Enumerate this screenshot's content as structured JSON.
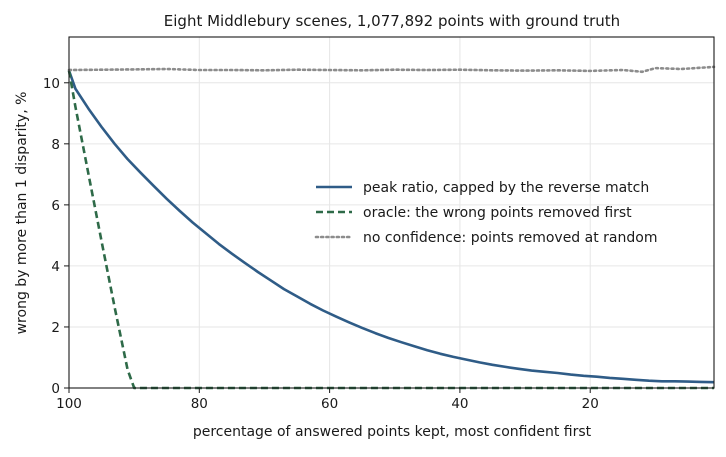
{
  "chart_data": {
    "type": "line",
    "title": "Eight Middlebury scenes, 1,077,892 points with ground truth",
    "xlabel": "percentage of answered points kept, most confident first",
    "ylabel": "wrong by more than 1 disparity, %",
    "xlim": [
      100,
      1
    ],
    "ylim": [
      0,
      11.5
    ],
    "x_axis_inverted": true,
    "xticks": [
      100,
      80,
      60,
      40,
      20
    ],
    "yticks": [
      0,
      2,
      4,
      6,
      8,
      10
    ],
    "grid": true,
    "legend_position": "center-right",
    "series": [
      {
        "name": "peak ratio, capped by the reverse match",
        "color": "#2f5c87",
        "style": "solid",
        "x": [
          100,
          99,
          97,
          95,
          93,
          91,
          89,
          87,
          85,
          83,
          81,
          79,
          77,
          75,
          73,
          71,
          69,
          67,
          65,
          63,
          61,
          59,
          57,
          55,
          53,
          51,
          49,
          47,
          45,
          43,
          41,
          39,
          37,
          35,
          33,
          31,
          29,
          27,
          25,
          23,
          21,
          19,
          17,
          15,
          13,
          11,
          9,
          7,
          5,
          3,
          1
        ],
        "y": [
          10.4,
          9.8,
          9.15,
          8.55,
          8.0,
          7.5,
          7.05,
          6.62,
          6.2,
          5.8,
          5.42,
          5.07,
          4.72,
          4.4,
          4.1,
          3.8,
          3.52,
          3.24,
          3.0,
          2.76,
          2.54,
          2.34,
          2.15,
          1.97,
          1.8,
          1.64,
          1.5,
          1.37,
          1.24,
          1.12,
          1.02,
          0.93,
          0.84,
          0.76,
          0.69,
          0.63,
          0.57,
          0.53,
          0.49,
          0.44,
          0.4,
          0.37,
          0.33,
          0.3,
          0.27,
          0.24,
          0.22,
          0.22,
          0.21,
          0.2,
          0.19
        ]
      },
      {
        "name": "oracle: the wrong points removed first",
        "color": "#2e6a48",
        "style": "dashed",
        "x": [
          100,
          99,
          97,
          95,
          93,
          91,
          90,
          89.6,
          88,
          80,
          60,
          40,
          20,
          1
        ],
        "y": [
          10.4,
          9.2,
          7.0,
          4.8,
          2.65,
          0.6,
          0.0,
          0.0,
          0.0,
          0.0,
          0.0,
          0.0,
          0.0,
          0.0
        ]
      },
      {
        "name": "no confidence: points removed at random",
        "color": "#8c8c8c",
        "style": "dotted",
        "x": [
          100,
          95,
          90,
          85,
          80,
          75,
          70,
          65,
          60,
          55,
          50,
          45,
          40,
          35,
          30,
          25,
          20,
          15,
          12,
          10,
          6,
          1
        ],
        "y": [
          10.42,
          10.43,
          10.44,
          10.45,
          10.42,
          10.42,
          10.41,
          10.43,
          10.42,
          10.41,
          10.43,
          10.42,
          10.43,
          10.41,
          10.4,
          10.41,
          10.39,
          10.42,
          10.36,
          10.48,
          10.45,
          10.52
        ]
      }
    ]
  }
}
